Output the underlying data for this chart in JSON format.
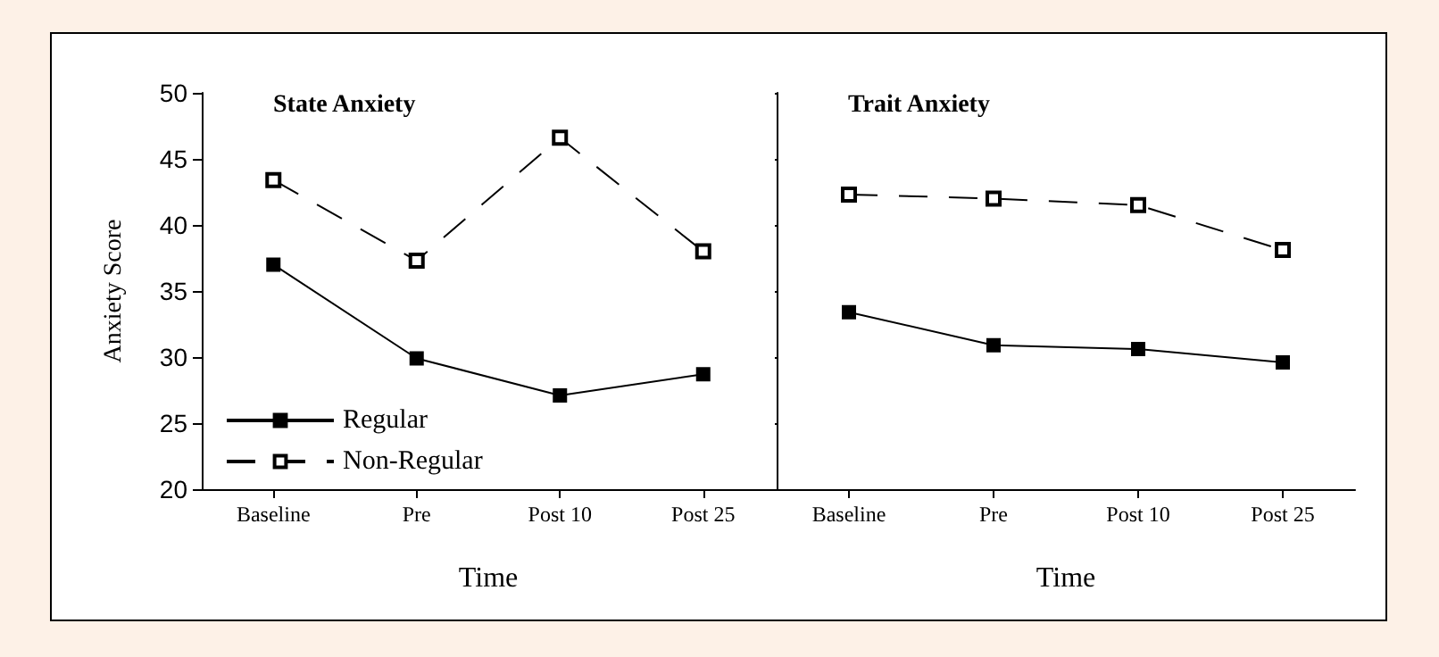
{
  "chart_data": [
    {
      "type": "line",
      "title": "State Anxiety",
      "xlabel": "Time",
      "ylabel": "Anxiety Score",
      "categories": [
        "Baseline",
        "Pre",
        "Post 10",
        "Post 25"
      ],
      "ylim": [
        20,
        50
      ],
      "yticks": [
        20,
        25,
        30,
        35,
        40,
        45,
        50
      ],
      "grid": false,
      "legend": "bottom left",
      "marker": "square",
      "series": [
        {
          "name": "Regular",
          "color": "#000000",
          "line_style": "solid",
          "values": [
            37.0,
            29.9,
            27.1,
            28.7
          ]
        },
        {
          "name": "Non-Regular",
          "color": "#000000",
          "line_style": "dashed",
          "values": [
            43.4,
            37.3,
            46.6,
            38.0
          ]
        }
      ]
    },
    {
      "type": "line",
      "title": "Trait Anxiety",
      "xlabel": "Time",
      "categories": [
        "Baseline",
        "Pre",
        "Post 10",
        "Post 25"
      ],
      "ylim": [
        20,
        50
      ],
      "yticks": [
        20,
        25,
        30,
        35,
        40,
        45,
        50
      ],
      "grid": false,
      "tick_labels": "x",
      "marker": "square",
      "series": [
        {
          "color": "#000000",
          "line_style": "solid",
          "values": [
            33.4,
            30.9,
            30.6,
            29.6
          ]
        },
        {
          "color": "#000000",
          "line_style": "dashed",
          "values": [
            42.3,
            42.0,
            41.5,
            38.1
          ]
        }
      ]
    }
  ]
}
